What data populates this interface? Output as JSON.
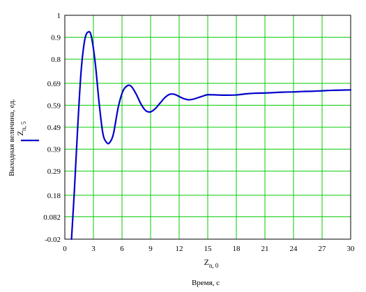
{
  "chart_data": {
    "type": "line",
    "xlabel": "Время, с",
    "ylabel": "Выходная величина, ед.",
    "x_var": {
      "base": "Z",
      "sub": "n, 0"
    },
    "legend": [
      {
        "base": "Z",
        "sub": "n, 5",
        "color": "#0000cc"
      }
    ],
    "xlim": [
      0,
      30
    ],
    "ylim": [
      -0.02,
      1
    ],
    "x_ticks": [
      {
        "value": 0,
        "label": "0"
      },
      {
        "value": 3,
        "label": "3"
      },
      {
        "value": 6,
        "label": "6"
      },
      {
        "value": 9,
        "label": "9"
      },
      {
        "value": 12,
        "label": "12"
      },
      {
        "value": 15,
        "label": "15"
      },
      {
        "value": 18,
        "label": "18"
      },
      {
        "value": 21,
        "label": "21"
      },
      {
        "value": 24,
        "label": "24"
      },
      {
        "value": 27,
        "label": "27"
      },
      {
        "value": 30,
        "label": "30"
      }
    ],
    "y_ticks": [
      {
        "value": -0.02,
        "label": "-0.02"
      },
      {
        "value": 0.082,
        "label": "0.082"
      },
      {
        "value": 0.18,
        "label": "0.18"
      },
      {
        "value": 0.29,
        "label": "0.29"
      },
      {
        "value": 0.39,
        "label": "0.39"
      },
      {
        "value": 0.49,
        "label": "0.49"
      },
      {
        "value": 0.59,
        "label": "0.59"
      },
      {
        "value": 0.69,
        "label": "0.69"
      },
      {
        "value": 0.8,
        "label": "0.8"
      },
      {
        "value": 0.9,
        "label": "0.9"
      },
      {
        "value": 1,
        "label": "1"
      }
    ],
    "grid": true,
    "grid_color": "#00cc00",
    "series": [
      {
        "color": "#0000cc",
        "points": [
          [
            0.7,
            -0.02
          ],
          [
            1.0,
            0.2
          ],
          [
            1.3,
            0.45
          ],
          [
            1.7,
            0.74
          ],
          [
            2.1,
            0.89
          ],
          [
            2.5,
            0.925
          ],
          [
            2.8,
            0.9
          ],
          [
            3.2,
            0.78
          ],
          [
            3.6,
            0.6
          ],
          [
            4.0,
            0.46
          ],
          [
            4.4,
            0.42
          ],
          [
            4.7,
            0.42
          ],
          [
            5.1,
            0.46
          ],
          [
            5.6,
            0.58
          ],
          [
            6.1,
            0.655
          ],
          [
            6.6,
            0.68
          ],
          [
            7.0,
            0.675
          ],
          [
            7.5,
            0.64
          ],
          [
            8.0,
            0.595
          ],
          [
            8.5,
            0.565
          ],
          [
            9.0,
            0.56
          ],
          [
            9.5,
            0.575
          ],
          [
            10.0,
            0.6
          ],
          [
            10.5,
            0.625
          ],
          [
            11.0,
            0.64
          ],
          [
            11.5,
            0.64
          ],
          [
            12.0,
            0.63
          ],
          [
            12.5,
            0.62
          ],
          [
            13.0,
            0.615
          ],
          [
            13.5,
            0.618
          ],
          [
            14.0,
            0.625
          ],
          [
            14.5,
            0.632
          ],
          [
            15.0,
            0.638
          ],
          [
            16.0,
            0.637
          ],
          [
            17.0,
            0.636
          ],
          [
            18.0,
            0.637
          ],
          [
            19.0,
            0.642
          ],
          [
            20.0,
            0.645
          ],
          [
            21.0,
            0.646
          ],
          [
            22.0,
            0.648
          ],
          [
            23.0,
            0.65
          ],
          [
            24.0,
            0.651
          ],
          [
            25.0,
            0.653
          ],
          [
            26.0,
            0.654
          ],
          [
            27.0,
            0.656
          ],
          [
            28.0,
            0.658
          ],
          [
            29.0,
            0.659
          ],
          [
            30.0,
            0.66
          ]
        ]
      }
    ]
  }
}
